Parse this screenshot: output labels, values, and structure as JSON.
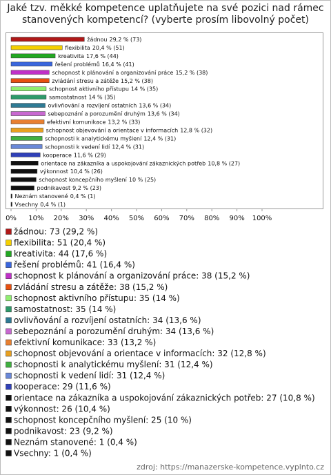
{
  "chart_data": {
    "type": "bar",
    "title": "Jaké tzv. měkké kompetence uplatňujete na své pozici nad rámec stanovených kompetencí? (vyberte prosím libovolný počet)",
    "categories": [
      "žádnou",
      "flexibilita",
      "kreativita",
      "řešení problémů",
      "schopnost k plánování a organizování práce",
      "zvládání stresu a zátěže",
      "schopnost aktivního přístupu",
      "samostatnost",
      "ovlivňování a rozvíjení ostatních",
      "sebepoznání a porozumění druhým",
      "efektivní komunikace",
      "schopnost objevování a orientace v informacích",
      "schopnosti k analytickému myšlení",
      "schopnosti k vedení lidí",
      "kooperace",
      "orientace na zákazníka a uspokojování zákaznických potřeb",
      "výkonnost",
      "schopnost koncepčního myšlení",
      "podnikavost",
      "Neznám stanovené",
      "Vsechny"
    ],
    "values": [
      29.2,
      20.4,
      17.6,
      16.4,
      15.2,
      15.2,
      14,
      14,
      13.6,
      13.6,
      13.2,
      12.8,
      12.4,
      12.4,
      11.6,
      10.8,
      10.4,
      10,
      9.2,
      0.4,
      0.4
    ],
    "value_labels": [
      "29,2 % (73)",
      "20,4 % (51)",
      "17,6 % (44)",
      "16,4 % (41)",
      "15,2 % (38)",
      "15,2 % (38)",
      "14 % (35)",
      "14 % (35)",
      "13,6 % (34)",
      "13,6 % (34)",
      "13,2 % (33)",
      "12,8 % (32)",
      "12,4 % (31)",
      "12,4 % (31)",
      "11,6 % (29)",
      "10,8 % (27)",
      "10,4 % (26)",
      "10 % (25)",
      "9,2 % (23)",
      "0,4 % (1)",
      "0,4 % (1)"
    ],
    "legend_labels": [
      "žádnou: 73 (29,2 %)",
      "flexibilita: 51 (20,4 %)",
      "kreativita: 44 (17,6 %)",
      "řešení problémů: 41 (16,4 %)",
      "schopnost k plánování a organizování práce: 38 (15,2 %)",
      "zvládání stresu a zátěže: 38 (15,2 %)",
      "schopnost aktivního přístupu: 35 (14 %)",
      "samostatnost: 35 (14 %)",
      "ovlivňování a rozvíjení ostatních: 34 (13,6 %)",
      "sebepoznání a porozumění druhým: 34 (13,6 %)",
      "efektivní komunikace: 33 (13,2 %)",
      "schopnost objevování a orientace v informacích: 32 (12,8 %)",
      "schopnosti k analytickému myšlení: 31 (12,4 %)",
      "schopnosti k vedení lidí: 31 (12,4 %)",
      "kooperace: 29 (11,6 %)",
      "orientace na zákazníka a uspokojování zákaznických potřeb: 27 (10,8 %)",
      "výkonnost: 26 (10,4 %)",
      "schopnost koncepčního myšlení: 25 (10 %)",
      "podnikavost: 23 (9,2 %)",
      "Neznám stanovené: 1 (0,4 %)",
      "Vsechny: 1 (0,4 %)"
    ],
    "colors": [
      "#b01818",
      "#f5d000",
      "#22a822",
      "#3a66dd",
      "#c030c8",
      "#e85010",
      "#90ee70",
      "#2e9a6a",
      "#2e7a94",
      "#c868d0",
      "#e88030",
      "#e8a020",
      "#40b040",
      "#6a88d8",
      "#3040b8",
      "#111111",
      "#111111",
      "#111111",
      "#111111",
      "#111111",
      "#111111"
    ],
    "xlim": [
      0,
      100
    ],
    "xticks": [
      {
        "value": 0,
        "label": "0%"
      },
      {
        "value": 10,
        "label": "10%"
      },
      {
        "value": 20,
        "label": "20%"
      },
      {
        "value": 30,
        "label": "30%"
      },
      {
        "value": 40,
        "label": "40%"
      },
      {
        "value": 50,
        "label": "50%"
      },
      {
        "value": 60,
        "label": "60%"
      },
      {
        "value": 70,
        "label": "70%"
      },
      {
        "value": 80,
        "label": "80%"
      },
      {
        "value": 90,
        "label": "90%"
      },
      {
        "value": 100,
        "label": "100%"
      }
    ],
    "source": "zdroj: https://manazerske-kompetence.vyplnto.cz"
  }
}
